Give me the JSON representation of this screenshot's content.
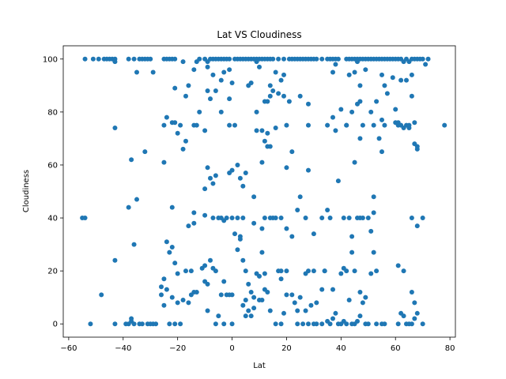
{
  "chart_data": {
    "type": "scatter",
    "title": "Lat VS Cloudiness",
    "xlabel": "Lat",
    "ylabel": "Cloudiness",
    "xlim": [
      -62,
      82
    ],
    "ylim": [
      -5,
      105
    ],
    "xticks": [
      -60,
      -40,
      -20,
      0,
      20,
      40,
      60,
      80
    ],
    "yticks": [
      0,
      20,
      40,
      60,
      80,
      100
    ],
    "grid": false,
    "point_color": "#1f77b4",
    "points": [
      [
        -54,
        100
      ],
      [
        -51,
        100
      ],
      [
        -49,
        100
      ],
      [
        -47,
        100
      ],
      [
        -46,
        100
      ],
      [
        -45,
        100
      ],
      [
        -44,
        100
      ],
      [
        -43,
        100
      ],
      [
        -43,
        99
      ],
      [
        -38,
        100
      ],
      [
        -36,
        100
      ],
      [
        -34,
        100
      ],
      [
        -33,
        100
      ],
      [
        -32,
        100
      ],
      [
        -31,
        100
      ],
      [
        -30,
        100
      ],
      [
        -25,
        100
      ],
      [
        -24,
        100
      ],
      [
        -23,
        100
      ],
      [
        -22,
        100
      ],
      [
        -21,
        100
      ],
      [
        -18,
        99
      ],
      [
        -12,
        100
      ],
      [
        -10,
        100
      ],
      [
        -9,
        99
      ],
      [
        -8,
        100
      ],
      [
        -7,
        100
      ],
      [
        -6,
        100
      ],
      [
        -5,
        100
      ],
      [
        -4,
        100
      ],
      [
        -3,
        100
      ],
      [
        -2,
        100
      ],
      [
        -1,
        100
      ],
      [
        1,
        100
      ],
      [
        2,
        100
      ],
      [
        3,
        100
      ],
      [
        4,
        100
      ],
      [
        5,
        100
      ],
      [
        6,
        100
      ],
      [
        7,
        100
      ],
      [
        8,
        100
      ],
      [
        9,
        100
      ],
      [
        10,
        100
      ],
      [
        11,
        100
      ],
      [
        12,
        100
      ],
      [
        13,
        100
      ],
      [
        14,
        100
      ],
      [
        15,
        100
      ],
      [
        17,
        100
      ],
      [
        19,
        100
      ],
      [
        21,
        100
      ],
      [
        22,
        100
      ],
      [
        23,
        100
      ],
      [
        24,
        100
      ],
      [
        25,
        100
      ],
      [
        26,
        100
      ],
      [
        27,
        100
      ],
      [
        28,
        100
      ],
      [
        29,
        100
      ],
      [
        30,
        100
      ],
      [
        31,
        100
      ],
      [
        33,
        100
      ],
      [
        35,
        100
      ],
      [
        36,
        100
      ],
      [
        37,
        100
      ],
      [
        38,
        100
      ],
      [
        39,
        100
      ],
      [
        42,
        100
      ],
      [
        43,
        100
      ],
      [
        44,
        100
      ],
      [
        45,
        100
      ],
      [
        46,
        100
      ],
      [
        47,
        100
      ],
      [
        48,
        100
      ],
      [
        49,
        100
      ],
      [
        50,
        100
      ],
      [
        51,
        100
      ],
      [
        52,
        100
      ],
      [
        53,
        100
      ],
      [
        54,
        100
      ],
      [
        55,
        100
      ],
      [
        56,
        100
      ],
      [
        57,
        100
      ],
      [
        58,
        100
      ],
      [
        59,
        100
      ],
      [
        60,
        100
      ],
      [
        61,
        100
      ],
      [
        62,
        100
      ],
      [
        63,
        99
      ],
      [
        64,
        100
      ],
      [
        65,
        99
      ],
      [
        66,
        100
      ],
      [
        67,
        100
      ],
      [
        68,
        100
      ],
      [
        69,
        100
      ],
      [
        70,
        100
      ],
      [
        71,
        98
      ],
      [
        72,
        100
      ],
      [
        -35,
        95
      ],
      [
        -29,
        95
      ],
      [
        -16,
        90
      ],
      [
        -14,
        96
      ],
      [
        -13,
        99
      ],
      [
        -9,
        97
      ],
      [
        -7,
        94
      ],
      [
        -4,
        92
      ],
      [
        -3,
        95
      ],
      [
        -1,
        96
      ],
      [
        0,
        91
      ],
      [
        6,
        90
      ],
      [
        7,
        91
      ],
      [
        9,
        99
      ],
      [
        10,
        97
      ],
      [
        14,
        90
      ],
      [
        16,
        95
      ],
      [
        18,
        92
      ],
      [
        19,
        94
      ],
      [
        25,
        86
      ],
      [
        28,
        83
      ],
      [
        37,
        95
      ],
      [
        38,
        98
      ],
      [
        43,
        94
      ],
      [
        45,
        95
      ],
      [
        46,
        99
      ],
      [
        47,
        90
      ],
      [
        49,
        96
      ],
      [
        53,
        84
      ],
      [
        55,
        94
      ],
      [
        56,
        90
      ],
      [
        59,
        93
      ],
      [
        62,
        92
      ],
      [
        64,
        92
      ],
      [
        66,
        94
      ],
      [
        -17,
        86
      ],
      [
        -12,
        80
      ],
      [
        -9,
        88
      ],
      [
        -8,
        85
      ],
      [
        -6,
        88
      ],
      [
        -4,
        80
      ],
      [
        -1,
        85
      ],
      [
        9,
        80
      ],
      [
        12,
        84
      ],
      [
        13,
        84
      ],
      [
        14,
        86
      ],
      [
        15,
        88
      ],
      [
        17,
        87
      ],
      [
        19,
        86
      ],
      [
        21,
        84
      ],
      [
        35,
        75
      ],
      [
        37,
        78
      ],
      [
        40,
        81
      ],
      [
        42,
        75
      ],
      [
        44,
        80
      ],
      [
        46,
        83
      ],
      [
        47,
        84
      ],
      [
        51,
        80
      ],
      [
        57,
        87
      ],
      [
        60,
        81
      ],
      [
        61,
        76
      ],
      [
        62,
        75
      ],
      [
        63,
        74
      ],
      [
        65,
        74
      ],
      [
        66,
        86
      ],
      [
        -43,
        74
      ],
      [
        -25,
        75
      ],
      [
        -24,
        78
      ],
      [
        -22,
        76
      ],
      [
        -21,
        76
      ],
      [
        -20,
        72
      ],
      [
        -19,
        75
      ],
      [
        -18,
        66
      ],
      [
        -17,
        69
      ],
      [
        -14,
        75
      ],
      [
        -13,
        75
      ],
      [
        -10,
        73
      ],
      [
        -1,
        75
      ],
      [
        1,
        75
      ],
      [
        9,
        73
      ],
      [
        11,
        73
      ],
      [
        13,
        72
      ],
      [
        16,
        74
      ],
      [
        20,
        75
      ],
      [
        28,
        75
      ],
      [
        38,
        73
      ],
      [
        42,
        75
      ],
      [
        48,
        75
      ],
      [
        52,
        75
      ],
      [
        55,
        77
      ],
      [
        56,
        75
      ],
      [
        60,
        76
      ],
      [
        61,
        75
      ],
      [
        64,
        75
      ],
      [
        65,
        75
      ],
      [
        67,
        76
      ],
      [
        67,
        68
      ],
      [
        68,
        66
      ],
      [
        68,
        67
      ],
      [
        78,
        75
      ],
      [
        -37,
        62
      ],
      [
        -32,
        65
      ],
      [
        -25,
        61
      ],
      [
        -21,
        89
      ],
      [
        -10,
        51
      ],
      [
        -9,
        59
      ],
      [
        -8,
        55
      ],
      [
        -7,
        53
      ],
      [
        -6,
        56
      ],
      [
        -1,
        57
      ],
      [
        0,
        58
      ],
      [
        2,
        60
      ],
      [
        3,
        55
      ],
      [
        4,
        52
      ],
      [
        5,
        57
      ],
      [
        8,
        48
      ],
      [
        11,
        61
      ],
      [
        12,
        69
      ],
      [
        13,
        67
      ],
      [
        14,
        67
      ],
      [
        20,
        59
      ],
      [
        22,
        65
      ],
      [
        28,
        58
      ],
      [
        39,
        54
      ],
      [
        45,
        61
      ],
      [
        47,
        70
      ],
      [
        52,
        48
      ],
      [
        54,
        70
      ],
      [
        55,
        65
      ],
      [
        -55,
        40
      ],
      [
        -54,
        40
      ],
      [
        -38,
        44
      ],
      [
        -35,
        47
      ],
      [
        -22,
        44
      ],
      [
        -16,
        37
      ],
      [
        -14,
        42
      ],
      [
        -14,
        38
      ],
      [
        -10,
        41
      ],
      [
        -7,
        40
      ],
      [
        -5,
        40
      ],
      [
        -4,
        40
      ],
      [
        -3,
        39
      ],
      [
        -2,
        40
      ],
      [
        0,
        40
      ],
      [
        1,
        34
      ],
      [
        2,
        40
      ],
      [
        3,
        33
      ],
      [
        4,
        40
      ],
      [
        8,
        38
      ],
      [
        11,
        36
      ],
      [
        12,
        40
      ],
      [
        14,
        40
      ],
      [
        15,
        40
      ],
      [
        18,
        40
      ],
      [
        20,
        36
      ],
      [
        22,
        33
      ],
      [
        24,
        43
      ],
      [
        25,
        48
      ],
      [
        27,
        40
      ],
      [
        30,
        34
      ],
      [
        33,
        40
      ],
      [
        35,
        43
      ],
      [
        36,
        40
      ],
      [
        41,
        40
      ],
      [
        43,
        40
      ],
      [
        44,
        33
      ],
      [
        46,
        40
      ],
      [
        47,
        40
      ],
      [
        48,
        40
      ],
      [
        50,
        40
      ],
      [
        51,
        35
      ],
      [
        52,
        42
      ],
      [
        66,
        40
      ],
      [
        68,
        37
      ],
      [
        70,
        40
      ],
      [
        -43,
        24
      ],
      [
        -36,
        30
      ],
      [
        -26,
        14
      ],
      [
        -25,
        17
      ],
      [
        -24,
        31
      ],
      [
        -23,
        27
      ],
      [
        -22,
        29
      ],
      [
        -21,
        23
      ],
      [
        -20,
        19
      ],
      [
        -17,
        20
      ],
      [
        -15,
        20
      ],
      [
        -14,
        12
      ],
      [
        -11,
        21
      ],
      [
        -10,
        22
      ],
      [
        -9,
        15
      ],
      [
        -8,
        24
      ],
      [
        -7,
        21
      ],
      [
        -6,
        20
      ],
      [
        -3,
        16
      ],
      [
        -2,
        11
      ],
      [
        0,
        11
      ],
      [
        2,
        28
      ],
      [
        3,
        32
      ],
      [
        4,
        24
      ],
      [
        5,
        20
      ],
      [
        6,
        15
      ],
      [
        7,
        12
      ],
      [
        8,
        10
      ],
      [
        9,
        19
      ],
      [
        10,
        18
      ],
      [
        11,
        27
      ],
      [
        12,
        19
      ],
      [
        13,
        12
      ],
      [
        16,
        40
      ],
      [
        18,
        17
      ],
      [
        18,
        20
      ],
      [
        20,
        20
      ],
      [
        24,
        5
      ],
      [
        25,
        10
      ],
      [
        27,
        19
      ],
      [
        28,
        20
      ],
      [
        30,
        20
      ],
      [
        31,
        8
      ],
      [
        33,
        13
      ],
      [
        34,
        20
      ],
      [
        37,
        13
      ],
      [
        40,
        19
      ],
      [
        41,
        21
      ],
      [
        42,
        20
      ],
      [
        44,
        27
      ],
      [
        45,
        20
      ],
      [
        47,
        12
      ],
      [
        49,
        10
      ],
      [
        51,
        19
      ],
      [
        52,
        27
      ],
      [
        53,
        20
      ],
      [
        61,
        22
      ],
      [
        63,
        20
      ],
      [
        66,
        12
      ],
      [
        67,
        8
      ],
      [
        -52,
        0
      ],
      [
        -48,
        11
      ],
      [
        -43,
        0
      ],
      [
        -39,
        0
      ],
      [
        -38,
        0
      ],
      [
        -37,
        1
      ],
      [
        -37,
        2
      ],
      [
        -36,
        0
      ],
      [
        -34,
        0
      ],
      [
        -33,
        0
      ],
      [
        -31,
        0
      ],
      [
        -30,
        0
      ],
      [
        -29,
        0
      ],
      [
        -28,
        0
      ],
      [
        -26,
        11
      ],
      [
        -25,
        7
      ],
      [
        -24,
        13
      ],
      [
        -23,
        0
      ],
      [
        -22,
        10
      ],
      [
        -21,
        0
      ],
      [
        -20,
        8
      ],
      [
        -19,
        0
      ],
      [
        -18,
        9
      ],
      [
        -16,
        8
      ],
      [
        -15,
        11
      ],
      [
        -13,
        12
      ],
      [
        -10,
        16
      ],
      [
        -9,
        5
      ],
      [
        -6,
        0
      ],
      [
        -5,
        3
      ],
      [
        -4,
        11
      ],
      [
        -3,
        0
      ],
      [
        -1,
        11
      ],
      [
        0,
        0
      ],
      [
        4,
        7
      ],
      [
        5,
        3
      ],
      [
        5,
        9
      ],
      [
        6,
        5
      ],
      [
        7,
        3
      ],
      [
        8,
        6
      ],
      [
        10,
        9
      ],
      [
        11,
        9
      ],
      [
        12,
        13
      ],
      [
        14,
        5
      ],
      [
        16,
        0
      ],
      [
        17,
        20
      ],
      [
        18,
        0
      ],
      [
        19,
        4
      ],
      [
        20,
        11
      ],
      [
        22,
        11
      ],
      [
        23,
        8
      ],
      [
        24,
        0
      ],
      [
        26,
        0
      ],
      [
        27,
        5
      ],
      [
        28,
        0
      ],
      [
        29,
        7
      ],
      [
        30,
        0
      ],
      [
        31,
        0
      ],
      [
        33,
        0
      ],
      [
        34,
        20
      ],
      [
        35,
        1
      ],
      [
        36,
        0
      ],
      [
        37,
        2
      ],
      [
        38,
        4
      ],
      [
        39,
        0
      ],
      [
        40,
        0
      ],
      [
        41,
        1
      ],
      [
        42,
        0
      ],
      [
        43,
        9
      ],
      [
        44,
        0
      ],
      [
        45,
        0
      ],
      [
        46,
        1
      ],
      [
        47,
        3
      ],
      [
        48,
        8
      ],
      [
        49,
        0
      ],
      [
        50,
        0
      ],
      [
        53,
        0
      ],
      [
        55,
        0
      ],
      [
        56,
        0
      ],
      [
        61,
        0
      ],
      [
        62,
        4
      ],
      [
        63,
        3
      ],
      [
        64,
        0
      ],
      [
        65,
        0
      ],
      [
        66,
        0
      ],
      [
        67,
        2
      ],
      [
        68,
        4
      ],
      [
        70,
        0
      ]
    ]
  }
}
